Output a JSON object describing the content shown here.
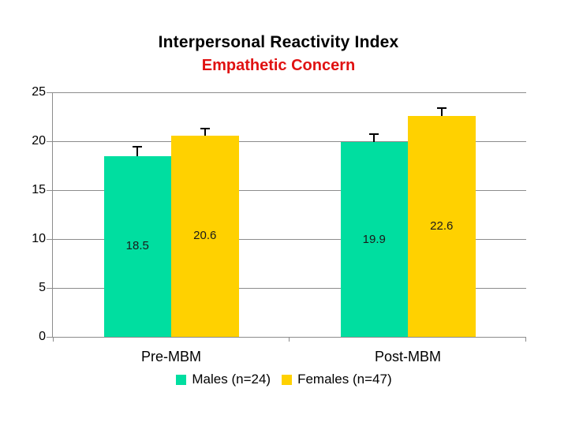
{
  "colors": {
    "males": "#00DEA0",
    "females": "#FFD100",
    "subtitle_red": "#E01212",
    "grid_gray": "#8C8C8C",
    "data_label": "#1A1A1A",
    "error_bar": "#000000"
  },
  "chart_data": {
    "type": "bar",
    "title": "Interpersonal Reactivity Index",
    "subtitle": "Empathetic Concern",
    "categories": [
      "Pre-MBM",
      "Post-MBM"
    ],
    "series": [
      {
        "name": "Males (n=24)",
        "color": "#00DEA0",
        "values": [
          18.5,
          19.9
        ],
        "errors": [
          0.9,
          0.8
        ],
        "labels": [
          "18.5",
          "19.9"
        ]
      },
      {
        "name": "Females (n=47)",
        "color": "#FFD100",
        "values": [
          20.6,
          22.6
        ],
        "errors": [
          0.7,
          0.8
        ],
        "labels": [
          "20.6",
          "22.6"
        ]
      }
    ],
    "xlabel": "",
    "ylabel": "",
    "ylim": [
      0,
      25
    ],
    "yticks": [
      25,
      20,
      15,
      10,
      5,
      0
    ],
    "grid": true,
    "legend_position": "bottom",
    "data_label_position": "inside-center"
  },
  "legend": {
    "items": [
      {
        "label": "Males (n=24)",
        "color": "#00DEA0"
      },
      {
        "label": "Females (n=47)",
        "color": "#FFD100"
      }
    ]
  }
}
